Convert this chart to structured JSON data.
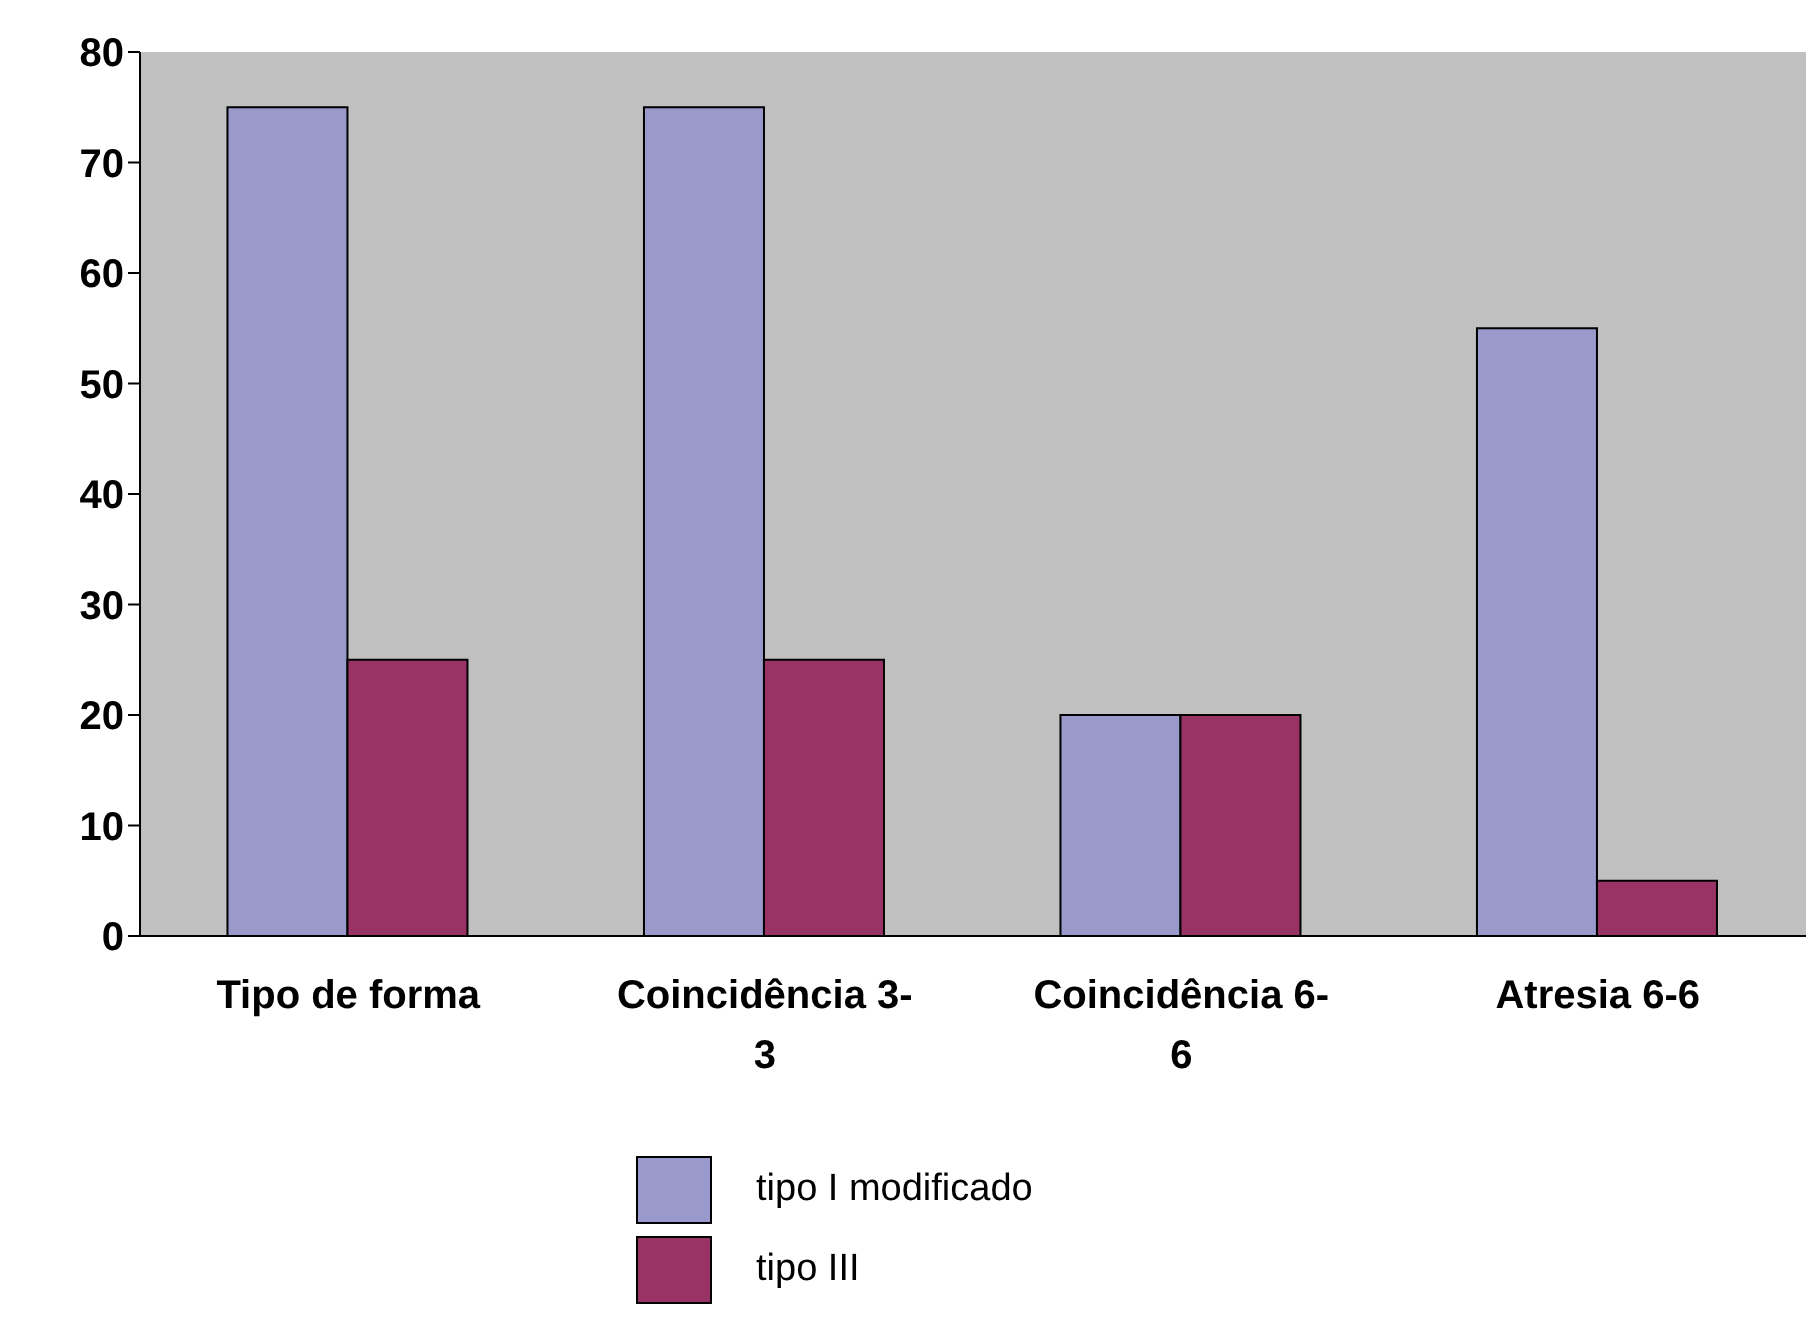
{
  "chart_data": {
    "type": "bar",
    "categories": [
      "Tipo de forma",
      "Coincidência 3-3",
      "Coincidência 6-6",
      "Atresia 6-6"
    ],
    "series": [
      {
        "name": "tipo I modificado",
        "color": "#9999cc",
        "values": [
          75,
          75,
          20,
          55
        ]
      },
      {
        "name": "tipo III",
        "color": "#993366",
        "values": [
          25,
          25,
          20,
          5
        ]
      }
    ],
    "ylim": [
      0,
      80
    ],
    "yticks": [
      0,
      10,
      20,
      30,
      40,
      50,
      60,
      70,
      80
    ],
    "grid": false,
    "legend": "bottom"
  }
}
